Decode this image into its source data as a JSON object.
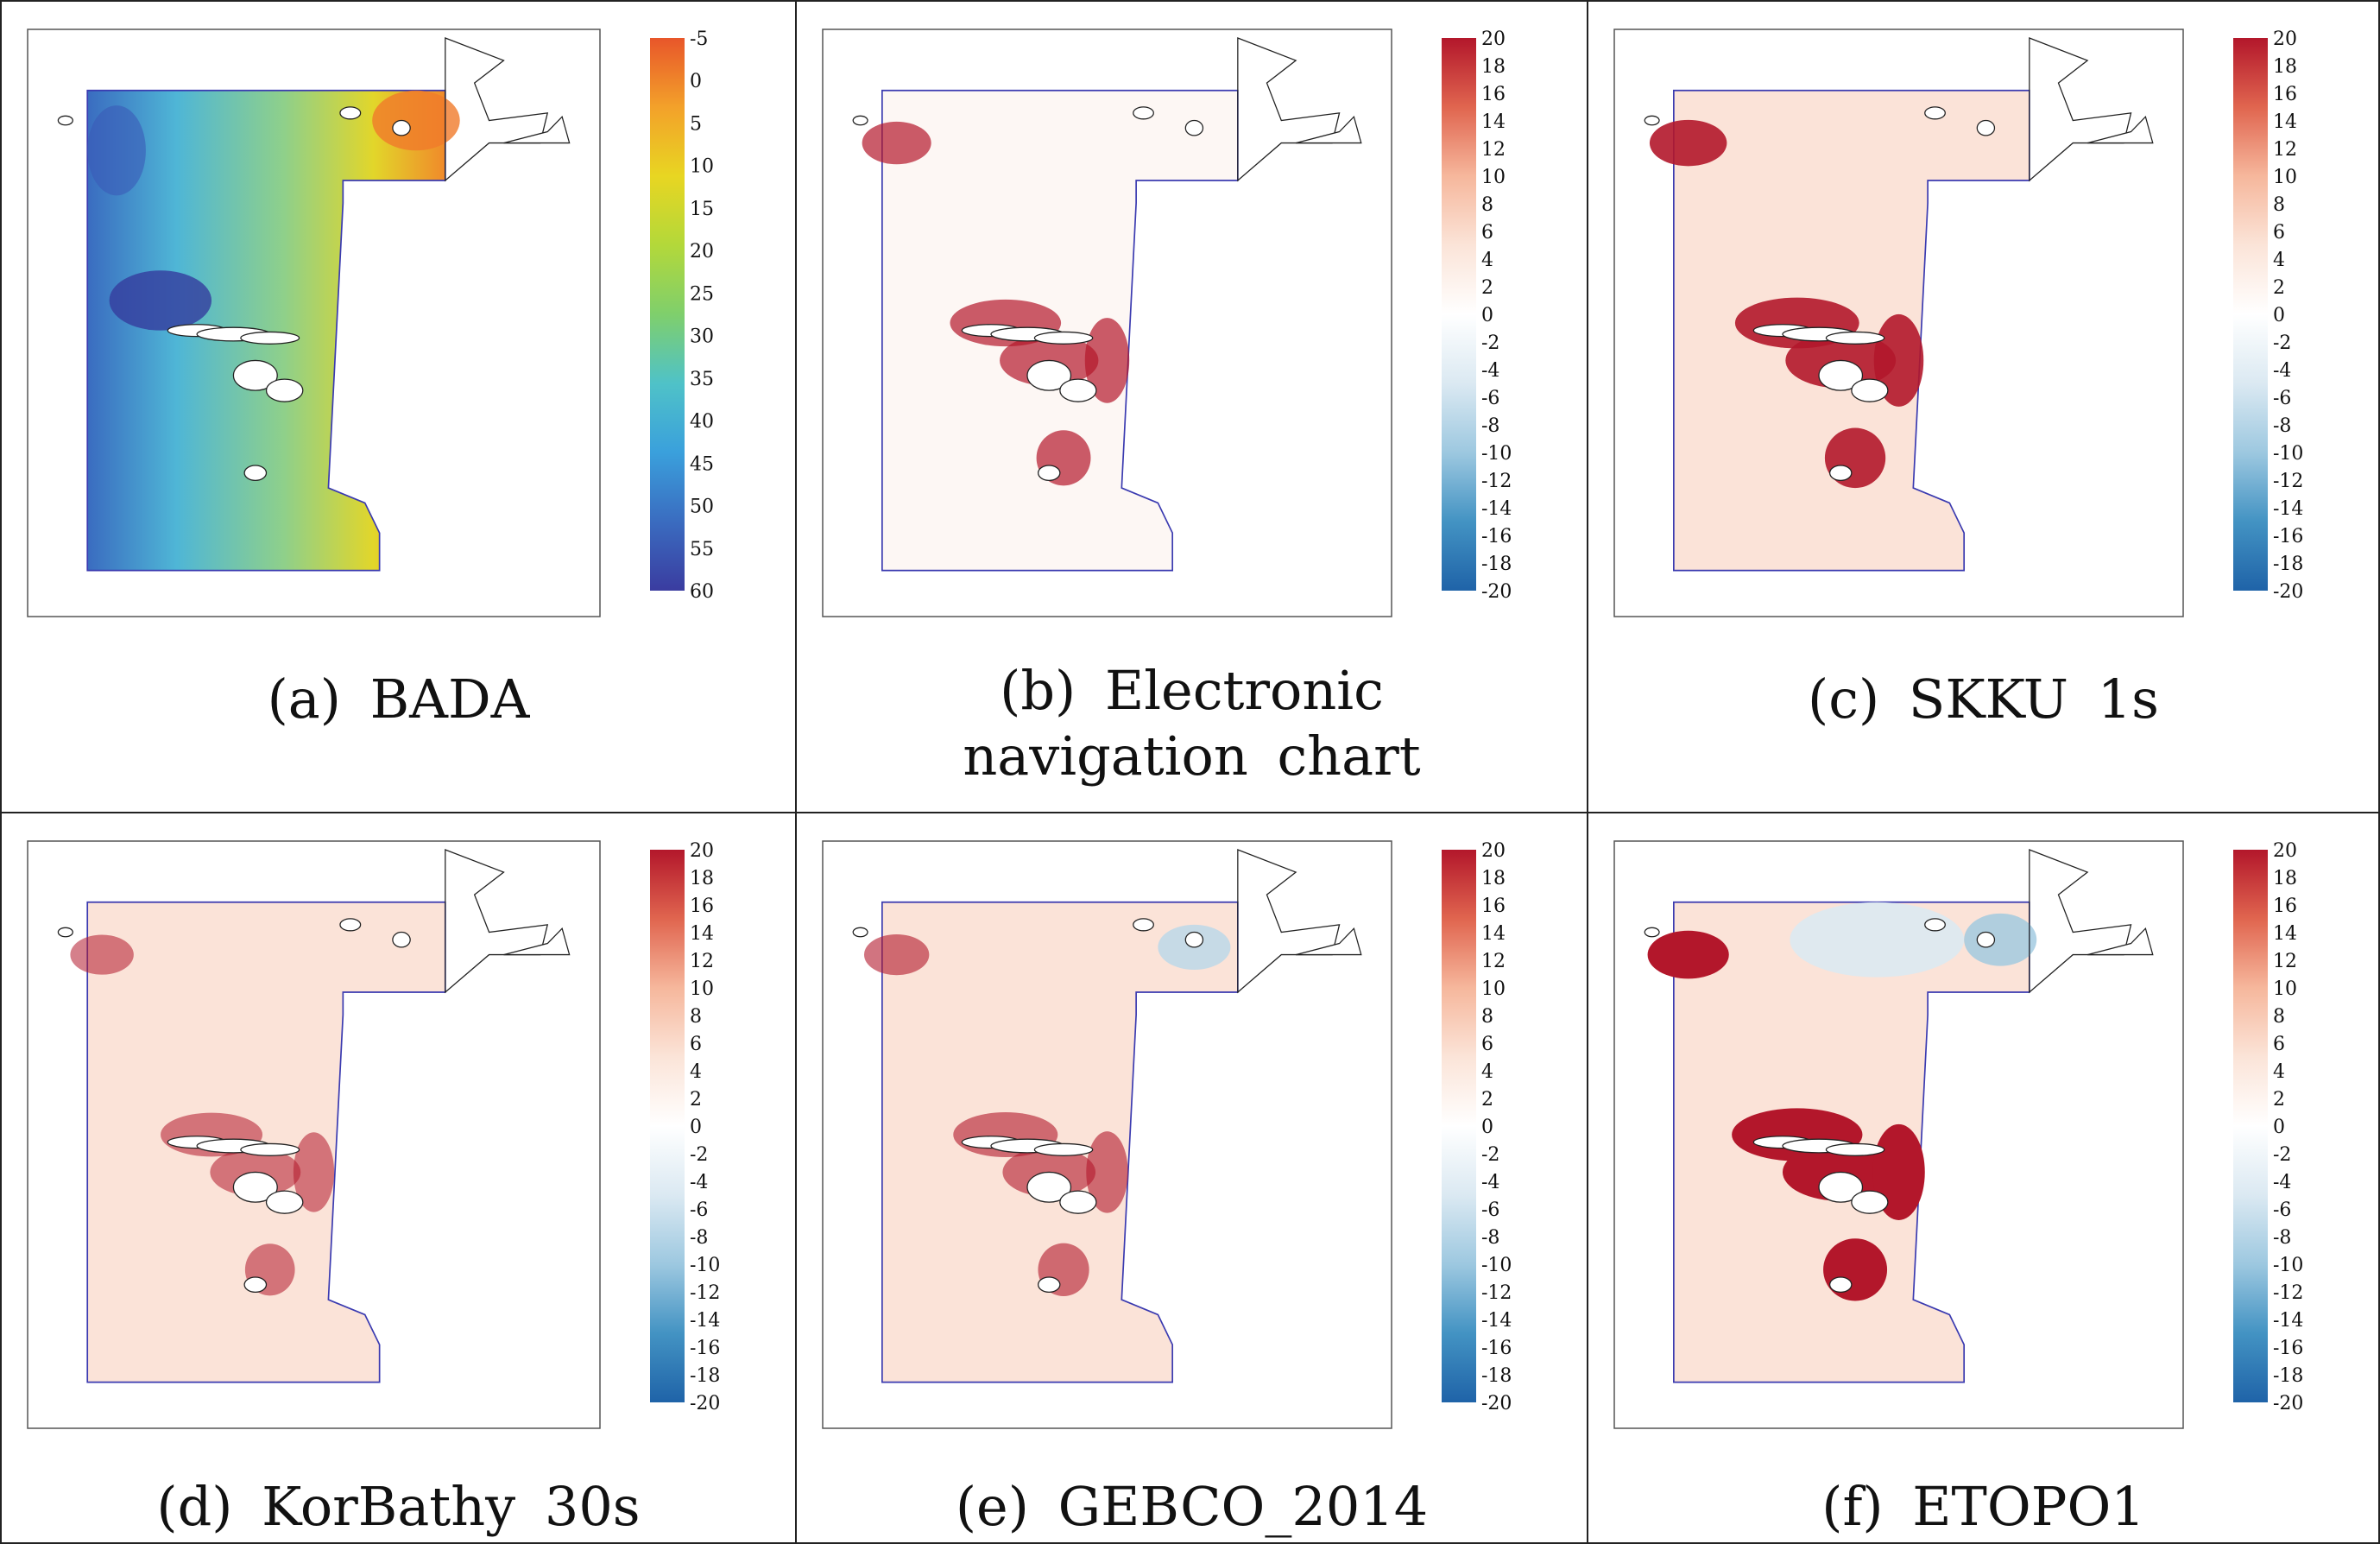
{
  "panels": [
    {
      "id": "a",
      "caption": "(a)  BADA",
      "scale": "depth",
      "ticks": [
        "-5",
        "0",
        "5",
        "10",
        "15",
        "20",
        "25",
        "30",
        "35",
        "40",
        "45",
        "50",
        "55",
        "60"
      ]
    },
    {
      "id": "b",
      "caption": "(b)  Electronic  navigation chart",
      "scale": "diff",
      "ticks": [
        "20",
        "18",
        "16",
        "14",
        "12",
        "10",
        "8",
        "6",
        "4",
        "2",
        "0",
        "-2",
        "-4",
        "-6",
        "-8",
        "-10",
        "-12",
        "-14",
        "-16",
        "-18",
        "-20"
      ]
    },
    {
      "id": "c",
      "caption": "(c)  SKKU  1s",
      "scale": "diff",
      "ticks": [
        "20",
        "18",
        "16",
        "14",
        "12",
        "10",
        "8",
        "6",
        "4",
        "2",
        "0",
        "-2",
        "-4",
        "-6",
        "-8",
        "-10",
        "-12",
        "-14",
        "-16",
        "-18",
        "-20"
      ]
    },
    {
      "id": "d",
      "caption": "(d)  KorBathy  30s",
      "scale": "diff",
      "ticks": [
        "20",
        "18",
        "16",
        "14",
        "12",
        "10",
        "8",
        "6",
        "4",
        "2",
        "0",
        "-2",
        "-4",
        "-6",
        "-8",
        "-10",
        "-12",
        "-14",
        "-16",
        "-18",
        "-20"
      ]
    },
    {
      "id": "e",
      "caption": "(e)  GEBCO_2014",
      "scale": "diff",
      "ticks": [
        "20",
        "18",
        "16",
        "14",
        "12",
        "10",
        "8",
        "6",
        "4",
        "2",
        "0",
        "-2",
        "-4",
        "-6",
        "-8",
        "-10",
        "-12",
        "-14",
        "-16",
        "-18",
        "-20"
      ]
    },
    {
      "id": "f",
      "caption": "(f)  ETOPO1",
      "scale": "diff",
      "ticks": [
        "20",
        "18",
        "16",
        "14",
        "12",
        "10",
        "8",
        "6",
        "4",
        "2",
        "0",
        "-2",
        "-4",
        "-6",
        "-8",
        "-10",
        "-12",
        "-14",
        "-16",
        "-18",
        "-20"
      ]
    }
  ],
  "colors": {
    "depth_ramp": [
      "#e8562a",
      "#f3a12a",
      "#e8d622",
      "#b3d83a",
      "#7fcf6c",
      "#4fc2c8",
      "#3aa0dc",
      "#3a6cc0",
      "#3a3ca0"
    ],
    "diff_ramp": [
      "#b3172b",
      "#e0654f",
      "#f6b79c",
      "#fbe4d8",
      "#ffffff",
      "#dbe9f2",
      "#9dc8e0",
      "#4393c3",
      "#1f63a8"
    ],
    "domain_outline": "#3a3ab0",
    "coast": "#222222"
  }
}
